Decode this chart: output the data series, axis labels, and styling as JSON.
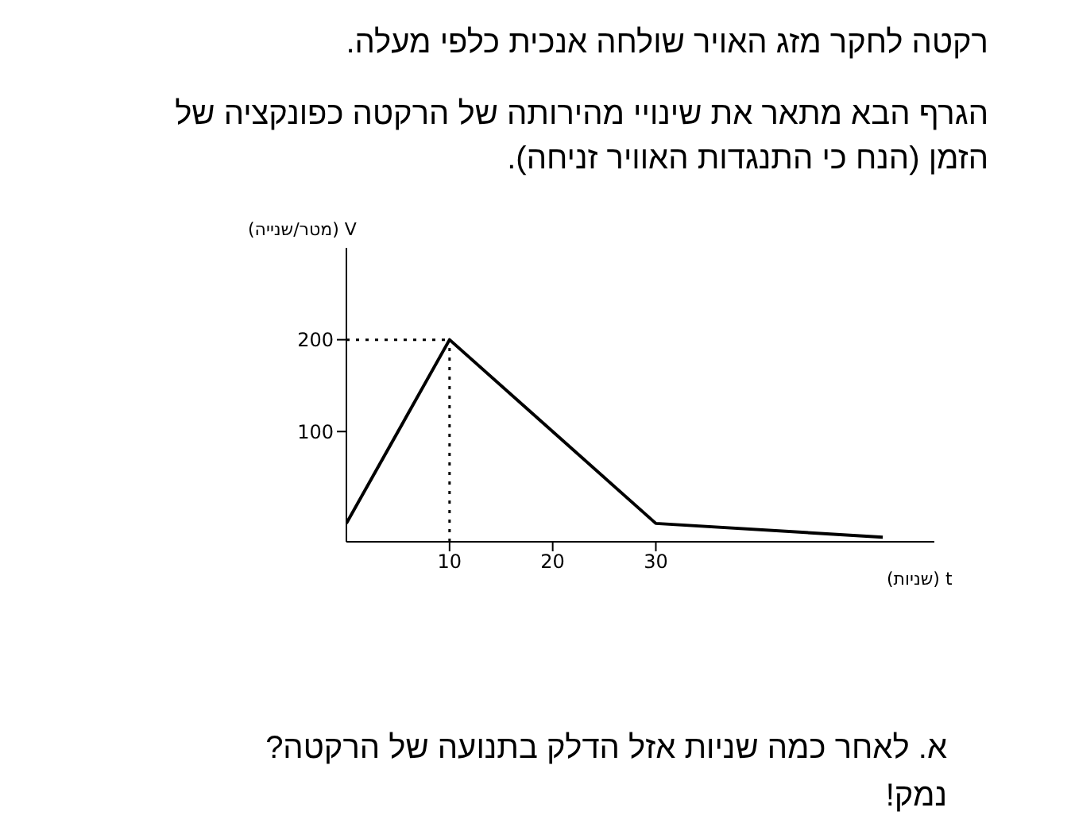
{
  "chart_data": {
    "type": "line",
    "title": "רקטה לחקר מזג האויר שולחה אנכית כלפי מעלה.",
    "subtitle": "הגרף הבא מתאר את שינויי מהירותה של הרקטה כפונקציה של הזמן (הנח כי התנגדות האוויר זניחה).",
    "xlabel": "t (שניות)",
    "ylabel": "V (מטר/שנייה)",
    "annotations": [
      "א. לאחר כמה שניות אזל הדלק בתנועה של הרקטה? נמק!"
    ],
    "x": [
      0,
      10,
      30,
      52
    ],
    "series": [
      {
        "color": "#000000",
        "values": [
          0,
          200,
          0,
          -15
        ]
      }
    ],
    "xlim": [
      0,
      57
    ],
    "xticks": [
      10,
      20,
      30
    ],
    "ylim": [
      -20,
      300
    ],
    "yticks": [
      100,
      200
    ],
    "ref_lines": [
      {
        "axis": "x",
        "value": 10,
        "line_style": "dotted"
      },
      {
        "axis": "y",
        "value": 200,
        "line_style": "dotted"
      }
    ],
    "grid": false,
    "marker": "none",
    "line_style": "solid"
  }
}
